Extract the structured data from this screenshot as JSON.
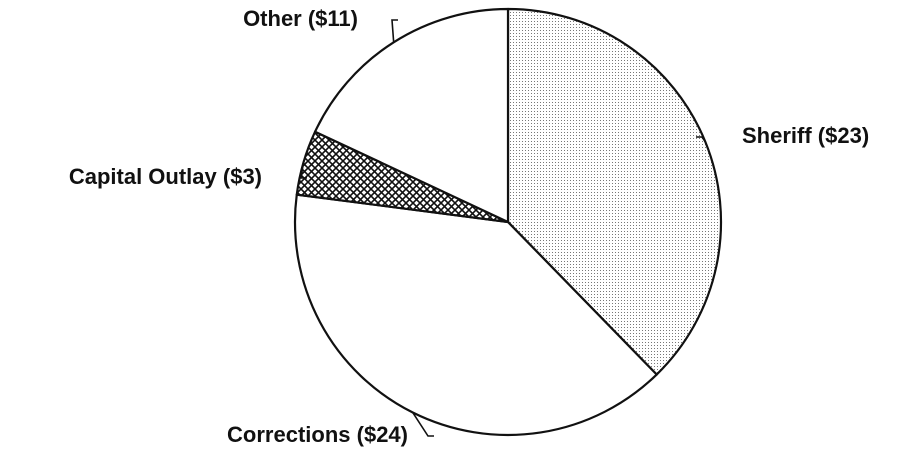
{
  "chart_data": {
    "type": "pie",
    "values": [
      23,
      24,
      3,
      11
    ],
    "value_labels": [
      "Sheriff ($23)",
      "Corrections ($24)",
      "Capital Outlay ($3)",
      "Other ($11)"
    ],
    "fills": [
      "dots",
      "none",
      "crosshatch",
      "none"
    ],
    "start_angle": 0,
    "direction": "clockwise"
  }
}
